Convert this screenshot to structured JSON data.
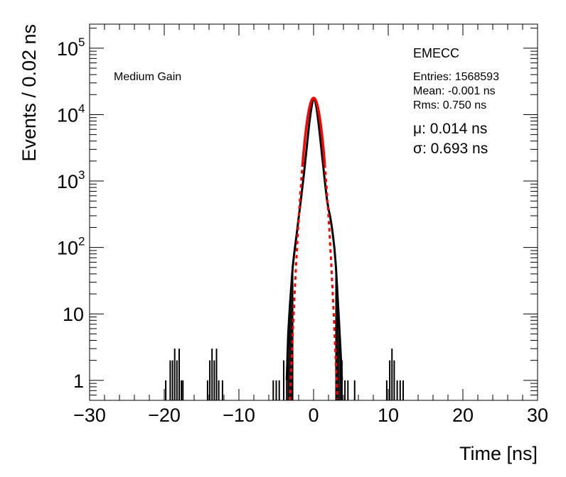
{
  "chart_data": {
    "type": "line",
    "title": "",
    "xlabel": "Time [ns]",
    "ylabel": "Events / 0.02 ns",
    "xlim": [
      -30,
      30
    ],
    "ylim": [
      0.5,
      230000
    ],
    "yscale": "log",
    "grid": false,
    "x_ticks": [
      {
        "value": -30,
        "label": "−30"
      },
      {
        "value": -20,
        "label": "−20"
      },
      {
        "value": -10,
        "label": "−10"
      },
      {
        "value": 0,
        "label": "0"
      },
      {
        "value": 10,
        "label": "10"
      },
      {
        "value": 20,
        "label": "20"
      },
      {
        "value": 30,
        "label": "30"
      }
    ],
    "y_ticks": [
      {
        "value": 1,
        "label": "1",
        "base": "",
        "exp": ""
      },
      {
        "value": 10,
        "label": "10",
        "base": "",
        "exp": ""
      },
      {
        "value": 100,
        "label": "",
        "base": "10",
        "exp": "2"
      },
      {
        "value": 1000,
        "label": "",
        "base": "10",
        "exp": "3"
      },
      {
        "value": 10000,
        "label": "",
        "base": "10",
        "exp": "4"
      },
      {
        "value": 100000,
        "label": "",
        "base": "10",
        "exp": "5"
      }
    ],
    "annotations": {
      "gain": "Medium Gain",
      "detector": "EMECC",
      "entries": "Entries: 1568593",
      "mean": "Mean: -0.001 ns",
      "rms": "Rms: 0.750 ns",
      "mu": "μ: 0.014 ns",
      "sigma": "σ: 0.693 ns"
    },
    "series": [
      {
        "kind": "histogram",
        "color": "#000000",
        "core_points": [
          [
            -3.6,
            1
          ],
          [
            -3.4,
            5
          ],
          [
            -3.2,
            12
          ],
          [
            -3.0,
            25
          ],
          [
            -2.8,
            50
          ],
          [
            -2.6,
            80
          ],
          [
            -2.4,
            120
          ],
          [
            -2.2,
            180
          ],
          [
            -2.0,
            280
          ],
          [
            -1.8,
            420
          ],
          [
            -1.6,
            650
          ],
          [
            -1.4,
            1000
          ],
          [
            -1.2,
            1600
          ],
          [
            -1.0,
            2600
          ],
          [
            -0.8,
            4300
          ],
          [
            -0.6,
            7000
          ],
          [
            -0.4,
            10500
          ],
          [
            -0.2,
            14500
          ],
          [
            0.0,
            17800
          ],
          [
            0.2,
            16500
          ],
          [
            0.4,
            12500
          ],
          [
            0.6,
            8500
          ],
          [
            0.8,
            5500
          ],
          [
            1.0,
            3400
          ],
          [
            1.2,
            2100
          ],
          [
            1.4,
            1300
          ],
          [
            1.6,
            800
          ],
          [
            1.8,
            520
          ],
          [
            2.0,
            380
          ],
          [
            2.2,
            300
          ],
          [
            2.4,
            220
          ],
          [
            2.6,
            150
          ],
          [
            2.8,
            95
          ],
          [
            3.0,
            50
          ],
          [
            3.2,
            20
          ],
          [
            3.4,
            8
          ],
          [
            3.6,
            3
          ],
          [
            3.8,
            1
          ]
        ],
        "outliers": [
          {
            "x": -19.8,
            "count": 1
          },
          {
            "x": -19.2,
            "count": 2
          },
          {
            "x": -18.9,
            "count": 2
          },
          {
            "x": -18.6,
            "count": 3
          },
          {
            "x": -18.3,
            "count": 2
          },
          {
            "x": -18.0,
            "count": 3
          },
          {
            "x": -17.7,
            "count": 1
          },
          {
            "x": -17.5,
            "count": 1
          },
          {
            "x": -14.2,
            "count": 1
          },
          {
            "x": -13.9,
            "count": 2
          },
          {
            "x": -13.6,
            "count": 3
          },
          {
            "x": -13.3,
            "count": 2
          },
          {
            "x": -13.0,
            "count": 3
          },
          {
            "x": -12.7,
            "count": 1
          },
          {
            "x": -12.2,
            "count": 1
          },
          {
            "x": -5.4,
            "count": 1
          },
          {
            "x": -5.0,
            "count": 1
          },
          {
            "x": -4.6,
            "count": 1
          },
          {
            "x": -4.0,
            "count": 2
          },
          {
            "x": 3.8,
            "count": 2
          },
          {
            "x": 4.2,
            "count": 1
          },
          {
            "x": 4.6,
            "count": 1
          },
          {
            "x": 5.5,
            "count": 1
          },
          {
            "x": 9.8,
            "count": 1
          },
          {
            "x": 10.2,
            "count": 2
          },
          {
            "x": 10.5,
            "count": 3
          },
          {
            "x": 10.8,
            "count": 2
          },
          {
            "x": 11.2,
            "count": 1
          },
          {
            "x": 11.6,
            "count": 1
          },
          {
            "x": 12.0,
            "count": 1
          }
        ]
      },
      {
        "kind": "gaussian_fit",
        "color": "#ff0000",
        "mu": 0.014,
        "sigma": 0.693,
        "amplitude": 17800,
        "solid_range": [
          -1.5,
          1.5
        ]
      }
    ]
  }
}
